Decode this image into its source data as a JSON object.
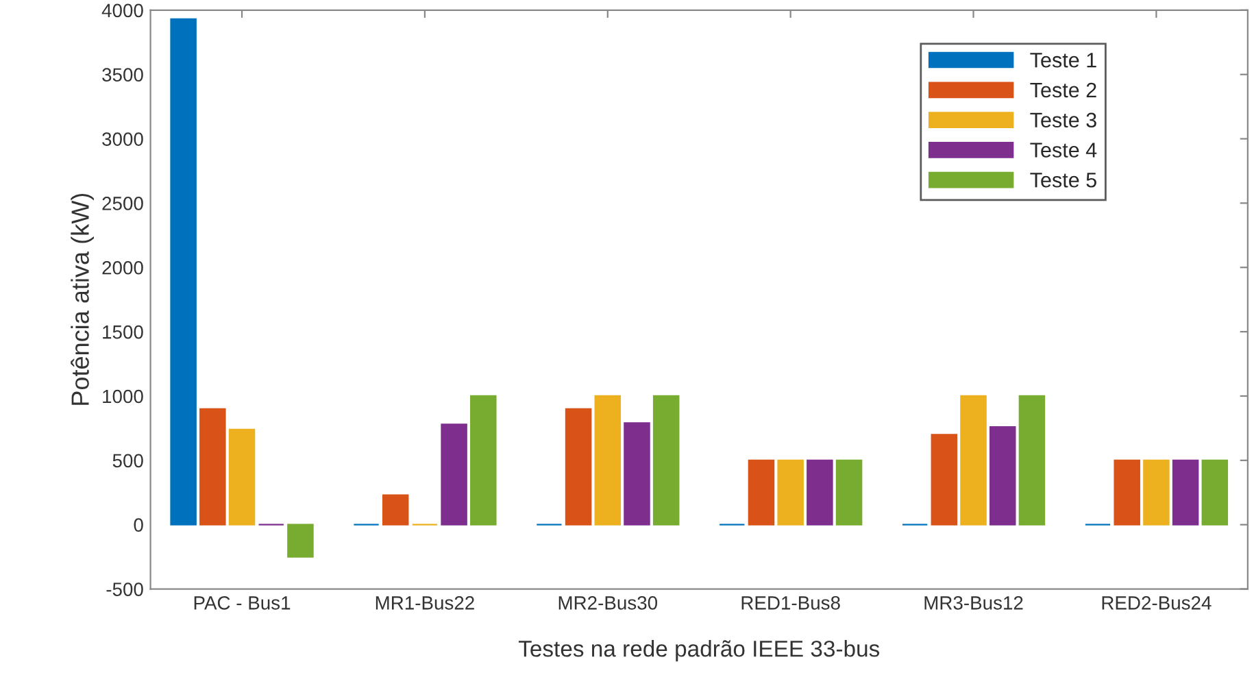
{
  "chart_data": {
    "type": "bar",
    "xlabel": "Testes na rede padrão IEEE 33-bus",
    "ylabel": "Potência ativa (kW)",
    "categories": [
      "PAC - Bus1",
      "MR1-Bus22",
      "MR2-Bus30",
      "RED1-Bus8",
      "MR3-Bus12",
      "RED2-Bus24"
    ],
    "series": [
      {
        "name": "Teste 1",
        "color": "#0072bd",
        "values": [
          3930,
          0,
          0,
          0,
          0,
          0
        ]
      },
      {
        "name": "Teste 2",
        "color": "#d95319",
        "values": [
          900,
          230,
          900,
          500,
          700,
          500
        ]
      },
      {
        "name": "Teste 3",
        "color": "#edb120",
        "values": [
          740,
          0,
          1000,
          500,
          1000,
          500
        ]
      },
      {
        "name": "Teste 4",
        "color": "#7e2f8e",
        "values": [
          0,
          780,
          790,
          500,
          760,
          500
        ]
      },
      {
        "name": "Teste 5",
        "color": "#77ac30",
        "values": [
          -250,
          1000,
          1000,
          500,
          1000,
          500
        ]
      }
    ],
    "ylim": [
      -500,
      4000
    ],
    "yticks": [
      -500,
      0,
      500,
      1000,
      1500,
      2000,
      2500,
      3000,
      3500,
      4000
    ],
    "grid": false,
    "legend": "top right"
  }
}
